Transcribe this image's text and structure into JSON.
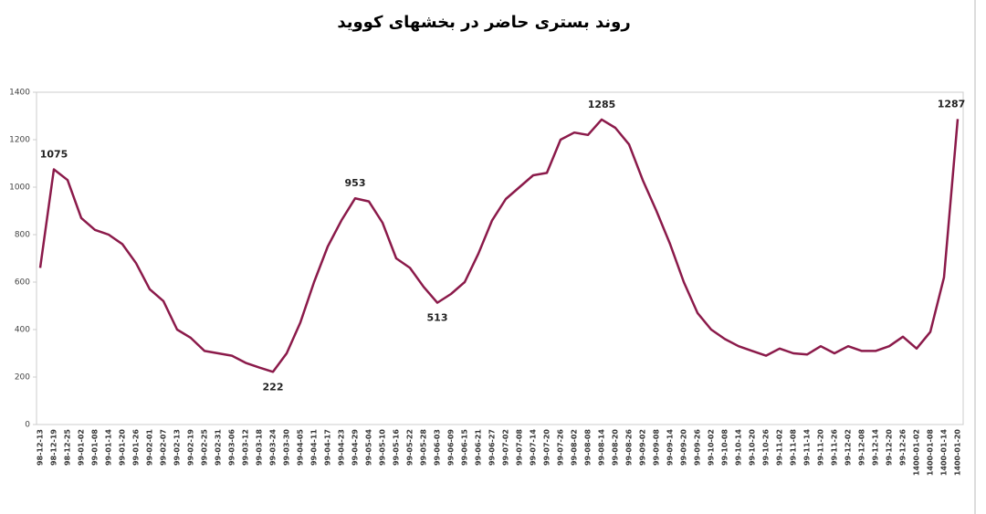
{
  "chart_data": {
    "type": "line",
    "title": "روند بستری حاضر در بخشهای کووید",
    "categories": [
      "98-12-13",
      "98-12-19",
      "98-12-25",
      "99-01-02",
      "99-01-08",
      "99-01-14",
      "99-01-20",
      "99-01-26",
      "99-02-01",
      "99-02-07",
      "99-02-13",
      "99-02-19",
      "99-02-25",
      "99-02-31",
      "99-03-06",
      "99-03-12",
      "99-03-18",
      "99-03-24",
      "99-03-30",
      "99-04-05",
      "99-04-11",
      "99-04-17",
      "99-04-23",
      "99-04-29",
      "99-05-04",
      "99-05-10",
      "99-05-16",
      "99-05-22",
      "99-05-28",
      "99-06-03",
      "99-06-09",
      "99-06-15",
      "99-06-21",
      "99-06-27",
      "99-07-02",
      "99-07-08",
      "99-07-14",
      "99-07-20",
      "99-07-26",
      "99-08-02",
      "99-08-08",
      "99-08-14",
      "99-08-20",
      "99-08-26",
      "99-09-02",
      "99-09-08",
      "99-09-14",
      "99-09-20",
      "99-09-26",
      "99-10-02",
      "99-10-08",
      "99-10-14",
      "99-10-20",
      "99-10-26",
      "99-11-02",
      "99-11-08",
      "99-11-14",
      "99-11-20",
      "99-11-26",
      "99-12-02",
      "99-12-08",
      "99-12-14",
      "99-12-20",
      "99-12-26",
      "1400-01-02",
      "1400-01-08",
      "1400-01-14",
      "1400-01-20"
    ],
    "values": [
      660,
      1075,
      1030,
      870,
      820,
      800,
      760,
      680,
      570,
      520,
      400,
      365,
      310,
      300,
      290,
      260,
      240,
      222,
      300,
      430,
      600,
      750,
      860,
      953,
      940,
      850,
      700,
      660,
      580,
      513,
      550,
      600,
      720,
      860,
      950,
      1000,
      1050,
      1060,
      1200,
      1230,
      1220,
      1285,
      1250,
      1180,
      1030,
      900,
      760,
      600,
      470,
      400,
      360,
      330,
      310,
      290,
      320,
      300,
      295,
      330,
      300,
      330,
      310,
      310,
      330,
      370,
      320,
      390,
      620,
      1287
    ],
    "annotated_points": [
      1,
      17,
      23,
      29,
      41,
      67
    ],
    "color": "#8b1a4a",
    "ylim": [
      0,
      1400
    ],
    "yticks": [
      0,
      200,
      400,
      600,
      800,
      1000,
      1200,
      1400
    ],
    "grid": false
  }
}
